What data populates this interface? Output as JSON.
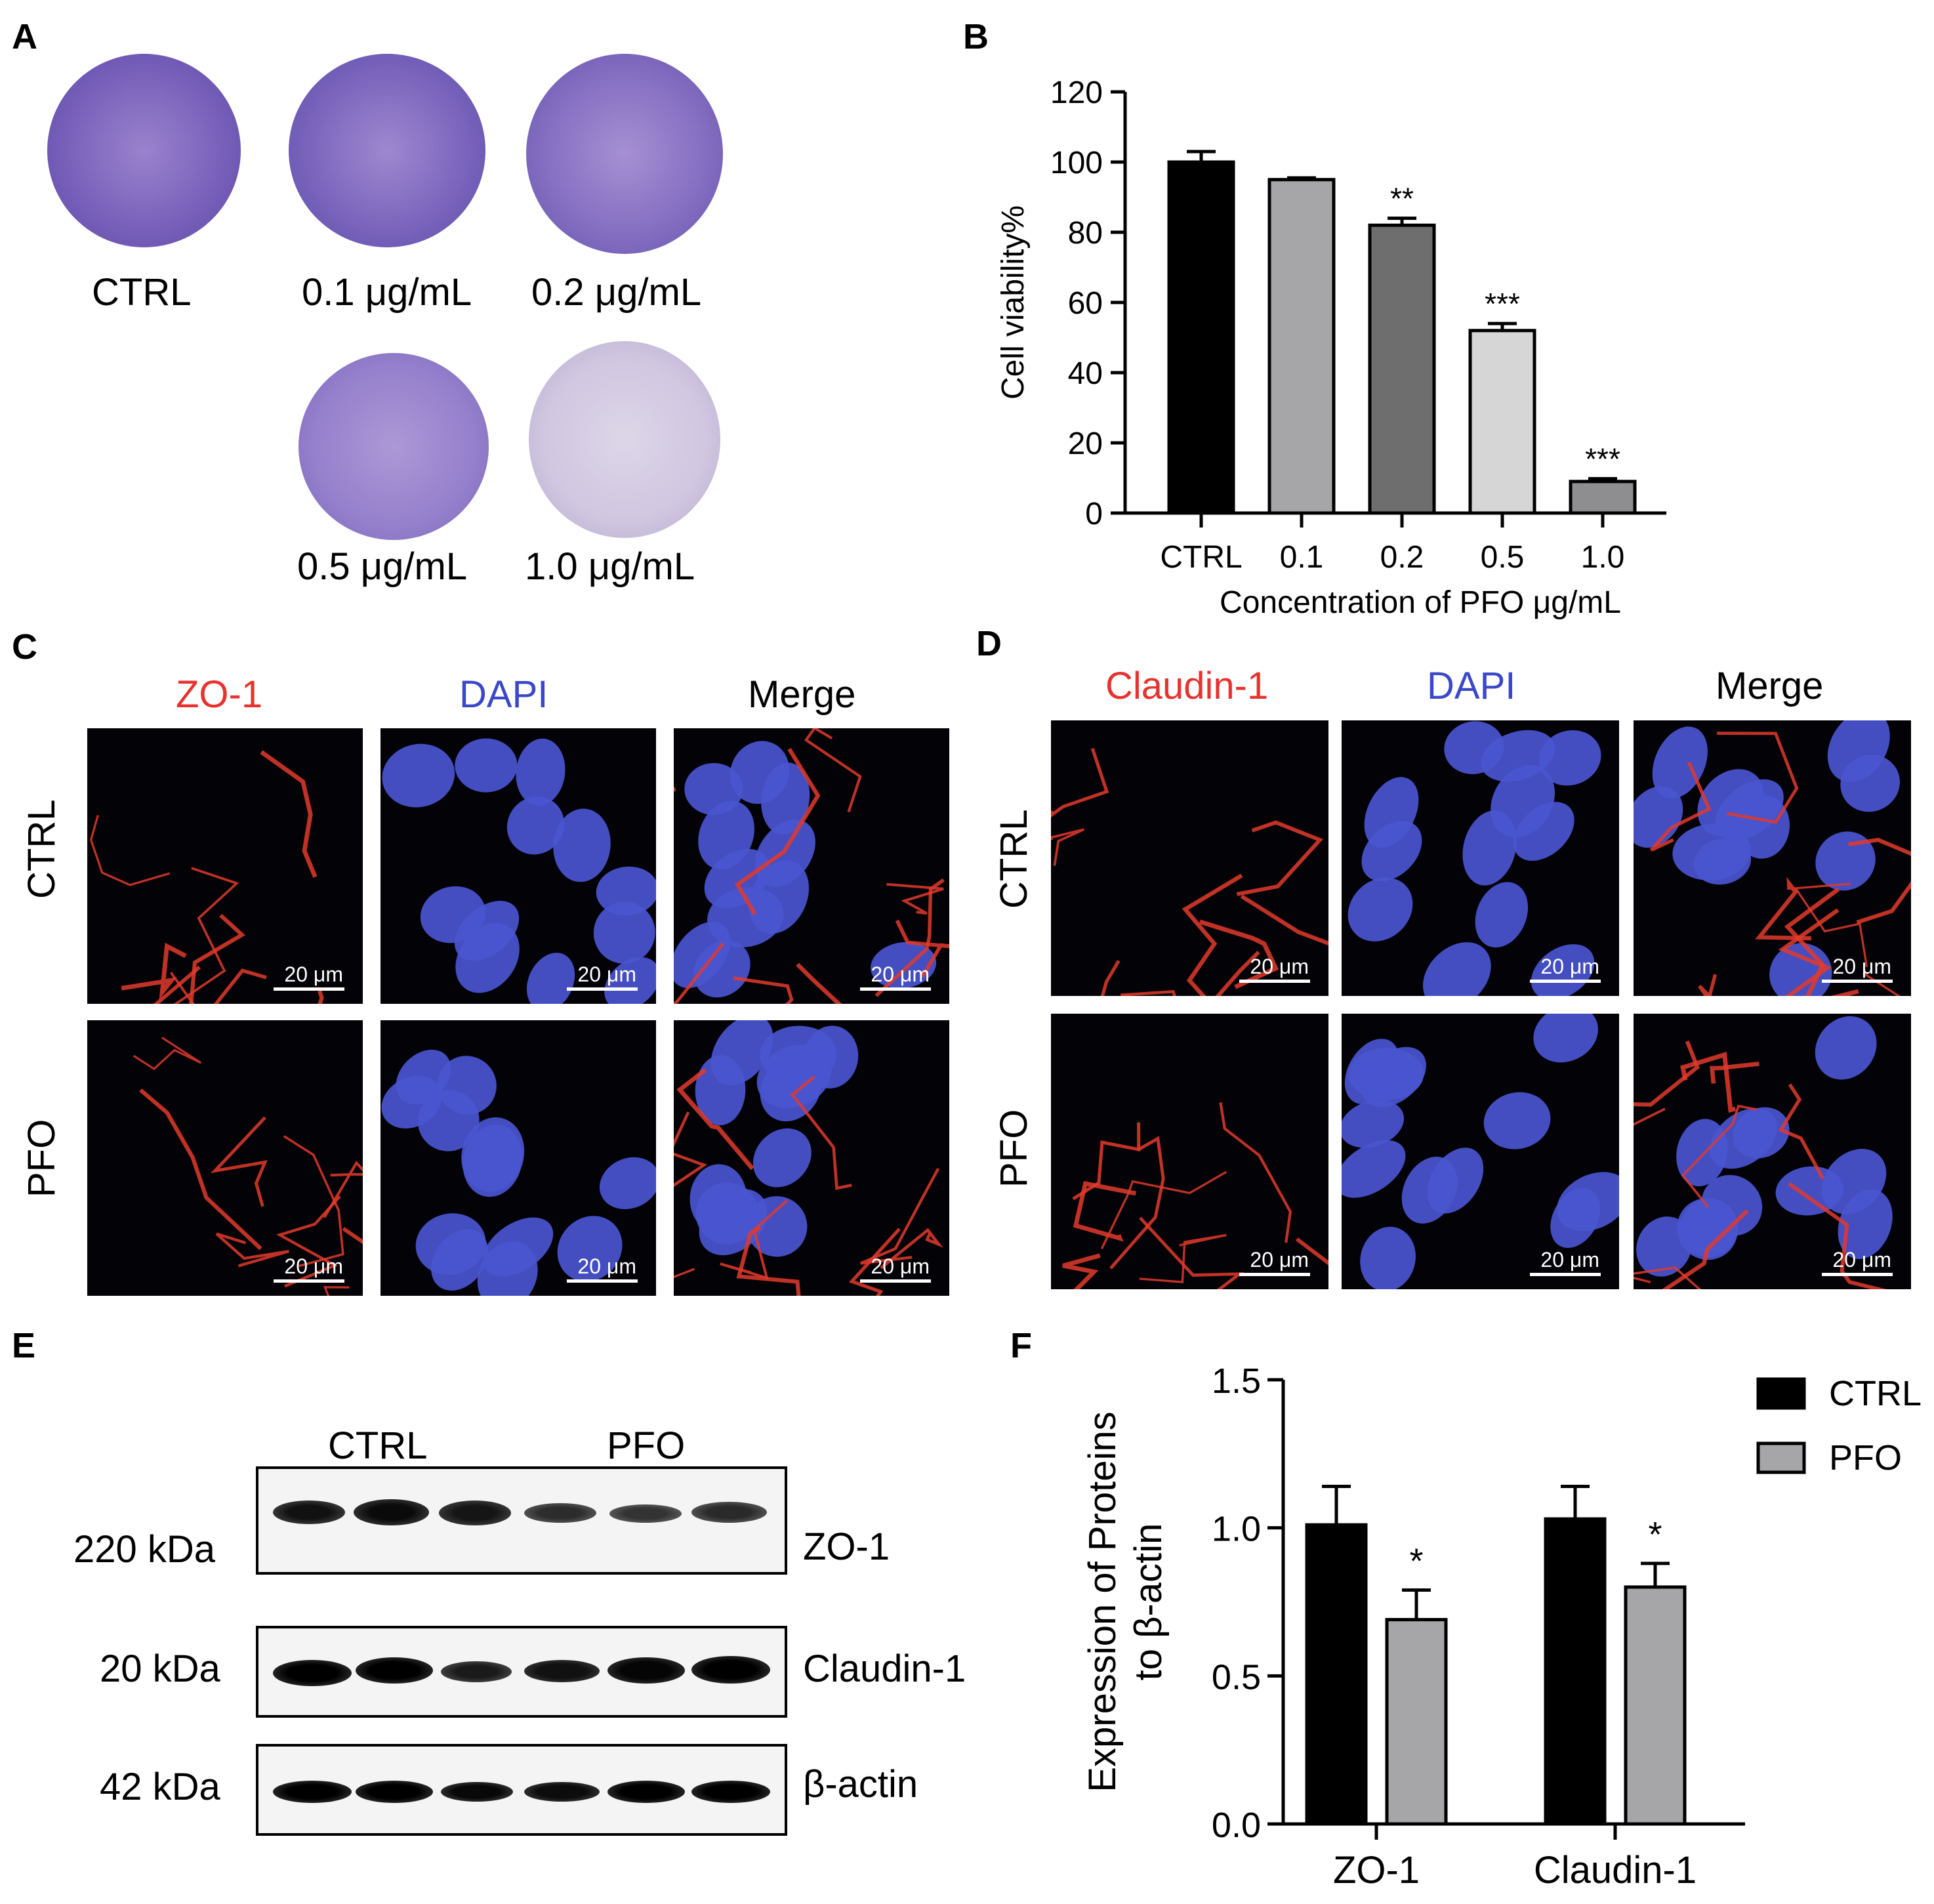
{
  "panels": {
    "a": "A",
    "b": "B",
    "c": "C",
    "d": "D",
    "e": "E",
    "f": "F"
  },
  "panel_a": {
    "dishes": [
      {
        "label": "CTRL"
      },
      {
        "label": "0.1 μg/mL"
      },
      {
        "label": "0.2 μg/mL"
      },
      {
        "label": "0.5 μg/mL"
      },
      {
        "label": "1.0 μg/mL"
      }
    ]
  },
  "panel_c": {
    "channels": [
      "ZO-1",
      "DAPI",
      "Merge"
    ],
    "rows": [
      "CTRL",
      "PFO"
    ],
    "scale": "20 μm"
  },
  "panel_d": {
    "channels": [
      "Claudin-1",
      "DAPI",
      "Merge"
    ],
    "rows": [
      "CTRL",
      "PFO"
    ],
    "scale": "20 μm"
  },
  "panel_e": {
    "groups": [
      "CTRL",
      "PFO"
    ],
    "rows": [
      {
        "kda": "220 kDa",
        "protein": "ZO-1"
      },
      {
        "kda": "20 kDa",
        "protein": "Claudin-1"
      },
      {
        "kda": "42 kDa",
        "protein": "β-actin"
      }
    ]
  },
  "colors": {
    "red_channel": "#e8322e",
    "blue_channel": "#3a48c8",
    "stain": "#6a4fb0"
  },
  "chart_data": [
    {
      "type": "bar",
      "panel": "B",
      "categories": [
        "CTRL",
        "0.1",
        "0.2",
        "0.5",
        "1.0"
      ],
      "values": [
        100,
        95,
        82,
        52,
        9
      ],
      "errors": [
        3,
        0.5,
        2,
        2,
        0.8
      ],
      "significance": [
        "",
        "",
        "**",
        "***",
        "***"
      ],
      "colors": [
        "#000000",
        "#a6a6a8",
        "#6e6e6e",
        "#d6d6d6",
        "#8e8e90"
      ],
      "ylabel": "Cell viability%",
      "xlabel": "Concentration of PFO  μg/mL",
      "ylim": [
        0,
        120
      ],
      "yticks": [
        0,
        20,
        40,
        60,
        80,
        100,
        120
      ]
    },
    {
      "type": "bar",
      "panel": "F",
      "categories": [
        "ZO-1",
        "Claudin-1"
      ],
      "series": [
        {
          "name": "CTRL",
          "values": [
            1.01,
            1.03
          ],
          "errors": [
            0.13,
            0.11
          ],
          "color": "#000000",
          "significance": [
            "",
            ""
          ]
        },
        {
          "name": "PFO",
          "values": [
            0.69,
            0.8
          ],
          "errors": [
            0.1,
            0.08
          ],
          "color": "#a6a6a8",
          "significance": [
            "*",
            "*"
          ]
        }
      ],
      "ylabel": "Expression of Proteins to β-actin",
      "ylim": [
        0,
        1.5
      ],
      "yticks": [
        "0.0",
        "0.5",
        "1.0",
        "1.5"
      ],
      "legend": "top-right"
    }
  ]
}
